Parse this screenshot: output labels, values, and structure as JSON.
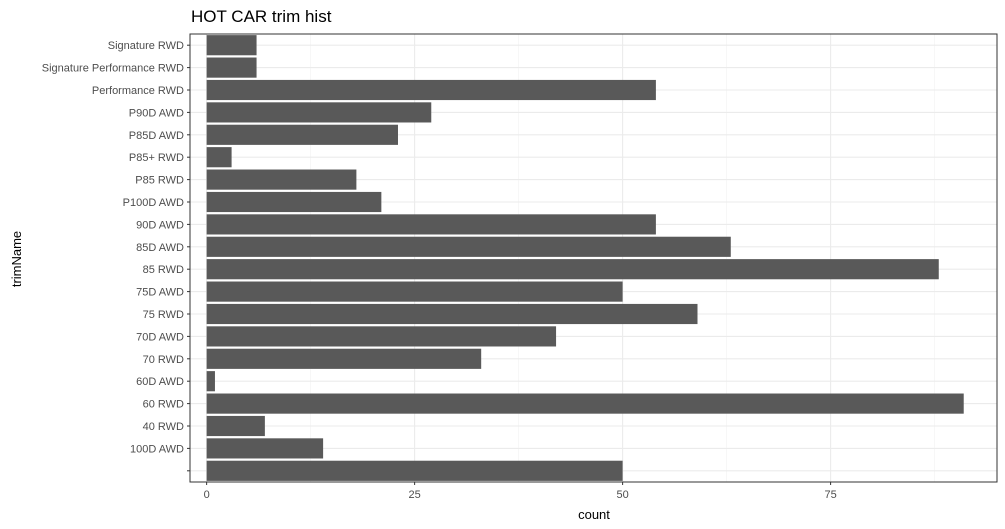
{
  "chart_data": {
    "type": "bar",
    "orientation": "horizontal",
    "title": "HOT CAR trim hist",
    "xlabel": "count",
    "ylabel": "trimName",
    "xlim": [
      -2,
      95
    ],
    "x_ticks": [
      0,
      25,
      50,
      75
    ],
    "grid": true,
    "bar_color": "#595959",
    "categories": [
      "Signature RWD",
      "Signature Performance RWD",
      "Performance RWD",
      "P90D AWD",
      "P85D AWD",
      "P85+ RWD",
      "P85 RWD",
      "P100D AWD",
      "90D AWD",
      "85D AWD",
      "85 RWD",
      "75D AWD",
      "75 RWD",
      "70D AWD",
      "70 RWD",
      "60D AWD",
      "60 RWD",
      "40 RWD",
      "100D AWD",
      ""
    ],
    "values": [
      6,
      6,
      54,
      27,
      23,
      3,
      18,
      21,
      54,
      63,
      88,
      50,
      59,
      42,
      33,
      1,
      91,
      7,
      14,
      50
    ]
  }
}
